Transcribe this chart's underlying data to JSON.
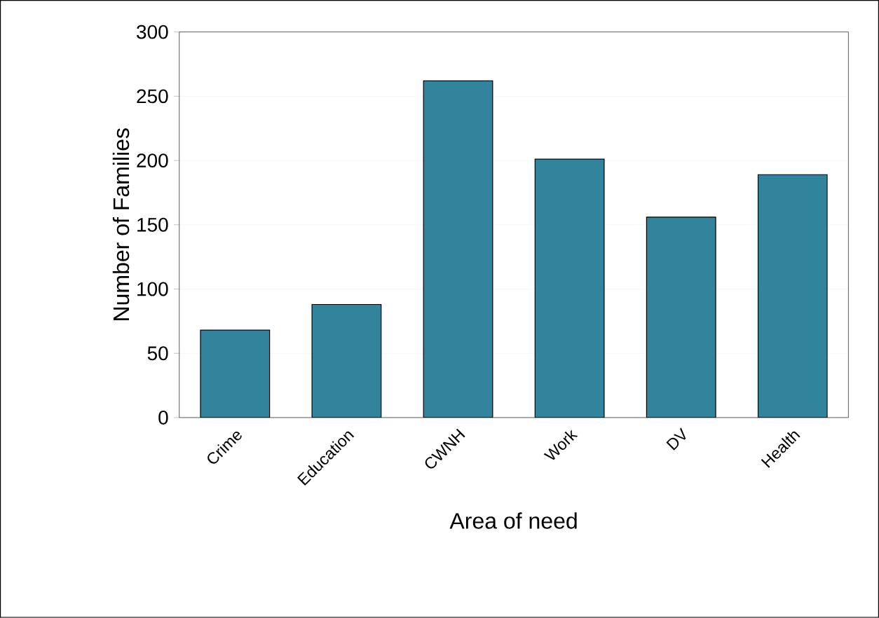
{
  "chart_data": {
    "type": "bar",
    "xlabel": "Area of need",
    "ylabel": "Number of Families",
    "categories": [
      "Crime",
      "Education",
      "CWNH",
      "Work",
      "DV",
      "Health"
    ],
    "values": [
      68,
      88,
      262,
      201,
      156,
      189
    ],
    "color": "#31849b",
    "ylim": [
      0,
      300
    ],
    "yticks": [
      0,
      50,
      100,
      150,
      200,
      250,
      300
    ],
    "grid": "y"
  }
}
